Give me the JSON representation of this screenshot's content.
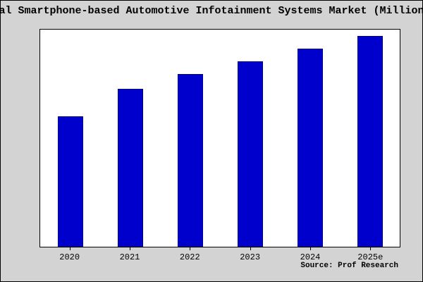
{
  "chart_data": {
    "type": "bar",
    "title": "al Smartphone-based Automotive Infotainment Systems Market (Million",
    "categories": [
      "2020",
      "2021",
      "2022",
      "2023",
      "2024",
      "2025e"
    ],
    "values": [
      62,
      75,
      82,
      88,
      94,
      100
    ],
    "ylim": [
      0,
      103
    ],
    "xlabel": "",
    "ylabel": "",
    "grid": false,
    "legend_position": "none",
    "source": "Source: Prof Research",
    "bar_color": "#0000CD",
    "bar_edge_color": "#00008B",
    "background_color": "#d3d3d3",
    "plot_background": "#ffffff"
  }
}
